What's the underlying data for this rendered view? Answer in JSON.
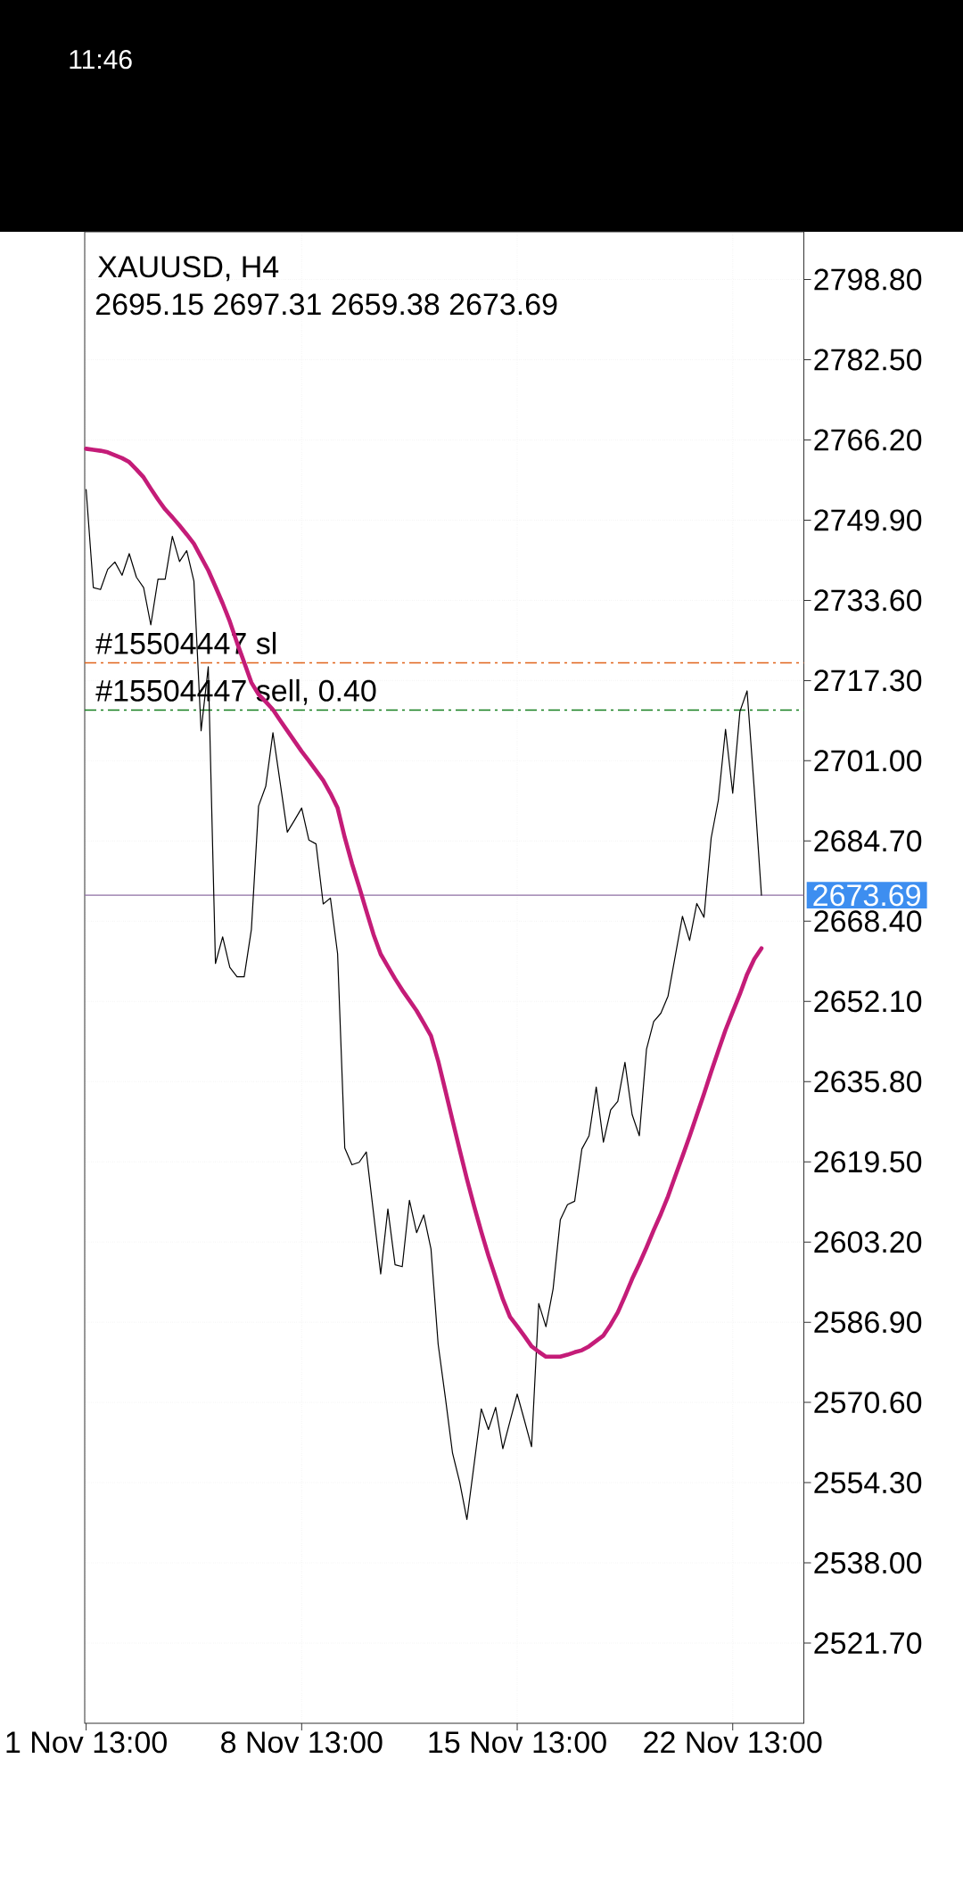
{
  "chart_data": {
    "type": "line",
    "title": "XAUUSD, H4",
    "subtitle": "2695.15 2697.31 2659.38 2673.69",
    "annotations": [
      "11:46"
    ],
    "categories": [
      "1 Nov 13:00",
      null,
      null,
      null,
      null,
      null,
      null,
      null,
      null,
      null,
      null,
      null,
      null,
      null,
      null,
      null,
      null,
      null,
      null,
      null,
      null,
      null,
      null,
      null,
      null,
      null,
      null,
      null,
      null,
      null,
      "8 Nov 13:00",
      null,
      null,
      null,
      null,
      null,
      null,
      null,
      null,
      null,
      null,
      null,
      null,
      null,
      null,
      null,
      null,
      null,
      null,
      null,
      null,
      null,
      null,
      null,
      null,
      null,
      null,
      null,
      null,
      null,
      "15 Nov 13:00",
      null,
      null,
      null,
      null,
      null,
      null,
      null,
      null,
      null,
      null,
      null,
      null,
      null,
      null,
      null,
      null,
      null,
      null,
      null,
      null,
      null,
      null,
      null,
      null,
      null,
      null,
      null,
      null,
      null,
      "22 Nov 13:00",
      null,
      null,
      null,
      null
    ],
    "series": [
      {
        "color": "#000000",
        "values": [
          2756.1,
          2736.2,
          2735.8,
          2739.9,
          2741.4,
          2738.7,
          2743.1,
          2738.3,
          2736.2,
          2728.6,
          2737.9,
          2737.9,
          2746.6,
          2741.5,
          2743.7,
          2737.5,
          2707.1,
          2720.1,
          2659.8,
          2665.2,
          2659.0,
          2657.1,
          2657.1,
          2666.7,
          2691.8,
          2695.8,
          2706.7,
          2696.6,
          2686.5,
          2688.9,
          2691.4,
          2684.9,
          2684.1,
          2671.9,
          2673.1,
          2661.8,
          2622.3,
          2618.9,
          2619.4,
          2621.5,
          2609.1,
          2596.7,
          2609.9,
          2598.6,
          2598.2,
          2611.7,
          2605.1,
          2608.7,
          2601.8,
          2582.4,
          2571.6,
          2560.3,
          2554.4,
          2546.8,
          2558.0,
          2569.3,
          2565.1,
          2569.6,
          2561.2,
          2566.8,
          2572.3,
          2567.0,
          2561.6,
          2590.7,
          2586.0,
          2593.7,
          2607.7,
          2610.8,
          2611.5,
          2622.1,
          2624.8,
          2634.7,
          2623.5,
          2630.0,
          2631.8,
          2639.7,
          2629.1,
          2624.8,
          2642.4,
          2648.0,
          2649.7,
          2653.2,
          2661.3,
          2669.4,
          2664.5,
          2672.0,
          2669.2,
          2685.3,
          2693.0,
          2707.4,
          2694.4,
          2711.0,
          2715.2,
          2695.2,
          2673.7
        ]
      },
      {
        "color": "#c41c78",
        "values": [
          2764.4,
          2764.2,
          2764.0,
          2763.7,
          2763.1,
          2762.5,
          2761.7,
          2760.2,
          2758.6,
          2756.3,
          2754.1,
          2752.1,
          2750.5,
          2748.8,
          2747.0,
          2745.1,
          2742.4,
          2739.7,
          2736.4,
          2733.0,
          2729.3,
          2725.0,
          2721.0,
          2716.9,
          2714.5,
          2713.0,
          2711.4,
          2709.2,
          2707.1,
          2705.0,
          2702.9,
          2701.0,
          2699.0,
          2697.0,
          2694.4,
          2691.4,
          2685.4,
          2680.1,
          2675.4,
          2670.5,
          2665.7,
          2661.7,
          2659.2,
          2656.7,
          2654.4,
          2652.3,
          2650.2,
          2647.7,
          2645.1,
          2640.0,
          2634.0,
          2627.9,
          2621.9,
          2616.0,
          2610.5,
          2605.3,
          2600.4,
          2596.0,
          2591.6,
          2588.0,
          2586.1,
          2584.1,
          2582.0,
          2580.9,
          2579.9,
          2579.9,
          2579.9,
          2580.3,
          2580.8,
          2581.2,
          2582.0,
          2583.1,
          2584.2,
          2586.4,
          2588.9,
          2592.2,
          2595.7,
          2598.8,
          2602.1,
          2605.6,
          2608.9,
          2612.5,
          2616.6,
          2620.6,
          2624.7,
          2629.0,
          2633.3,
          2637.8,
          2642.1,
          2646.3,
          2650.0,
          2653.6,
          2657.6,
          2660.7,
          2662.9
        ]
      }
    ],
    "ylim": [
      2505.4,
      2808.5
    ],
    "yticks": [
      {
        "value": 2521.7,
        "label": "2521.70"
      },
      {
        "value": 2538.0,
        "label": "2538.00"
      },
      {
        "value": 2554.3,
        "label": "2554.30"
      },
      {
        "value": 2570.6,
        "label": "2570.60"
      },
      {
        "value": 2586.9,
        "label": "2586.90"
      },
      {
        "value": 2603.2,
        "label": "2603.20"
      },
      {
        "value": 2619.5,
        "label": "2619.50"
      },
      {
        "value": 2635.8,
        "label": "2635.80"
      },
      {
        "value": 2652.1,
        "label": "2652.10"
      },
      {
        "value": 2668.4,
        "label": "2668.40"
      },
      {
        "value": 2684.7,
        "label": "2684.70"
      },
      {
        "value": 2701.0,
        "label": "2701.00"
      },
      {
        "value": 2717.3,
        "label": "2717.30"
      },
      {
        "value": 2733.6,
        "label": "2733.60"
      },
      {
        "value": 2749.9,
        "label": "2749.90"
      },
      {
        "value": 2766.2,
        "label": "2766.20"
      },
      {
        "value": 2782.5,
        "label": "2782.50"
      },
      {
        "value": 2798.8,
        "label": "2798.80"
      }
    ],
    "ref_lines": [
      {
        "axis": "y",
        "value": 2720.9,
        "label": "#15504447 sl",
        "color": "#e0631a",
        "line_style": "dashdot"
      },
      {
        "axis": "y",
        "value": 2711.3,
        "label": "#15504447 sell, 0.40",
        "color": "#157f1f",
        "line_style": "dashdot"
      },
      {
        "axis": "y",
        "value": 2673.69,
        "label": "2673.69",
        "color": "#8e6fa3",
        "line_style": "solid"
      }
    ],
    "grid": true
  }
}
